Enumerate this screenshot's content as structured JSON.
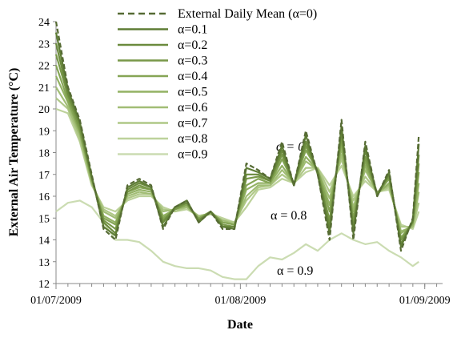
{
  "chart_data": {
    "type": "line",
    "y_label": "External Air Temperature (°C)",
    "x_label": "Date",
    "x": [
      "01/07/2009",
      "03/07/2009",
      "05/07/2009",
      "07/07/2009",
      "09/07/2009",
      "11/07/2009",
      "13/07/2009",
      "15/07/2009",
      "17/07/2009",
      "19/07/2009",
      "21/07/2009",
      "23/07/2009",
      "25/07/2009",
      "27/07/2009",
      "29/07/2009",
      "31/07/2009",
      "02/08/2009",
      "04/08/2009",
      "06/08/2009",
      "08/08/2009",
      "10/08/2009",
      "12/08/2009",
      "14/08/2009",
      "16/08/2009",
      "18/08/2009",
      "20/08/2009",
      "22/08/2009",
      "24/08/2009",
      "26/08/2009",
      "28/08/2009",
      "30/08/2009",
      "31/08/2009"
    ],
    "xlim": [
      "01/07/2009",
      "04/09/2009"
    ],
    "xticks": [
      "01/07/2009",
      "01/08/2009",
      "01/09/2009"
    ],
    "ylim": [
      12,
      24
    ],
    "yticks": [
      12,
      13,
      14,
      15,
      16,
      17,
      18,
      19,
      20,
      21,
      22,
      23,
      24
    ],
    "series": [
      {
        "name": "External Daily Mean (α=0)",
        "color": "#566b34",
        "dashed": true,
        "values": [
          24,
          21,
          19.5,
          17,
          14.5,
          14,
          16.5,
          16.8,
          16.5,
          14.5,
          15.5,
          15.8,
          14.8,
          15.3,
          14.5,
          14.5,
          17.5,
          17.2,
          16.8,
          18.5,
          16.5,
          19,
          17,
          14,
          19.5,
          14,
          18.5,
          16,
          17.2,
          13.5,
          15,
          18.8
        ]
      },
      {
        "name": "α=0.1",
        "color": "#5e7d35",
        "values": [
          23.5,
          20.9,
          19.4,
          16.9,
          14.6,
          14.2,
          16.4,
          16.7,
          16.4,
          14.6,
          15.5,
          15.8,
          14.8,
          15.3,
          14.6,
          14.5,
          17.3,
          17.1,
          16.8,
          18.3,
          16.5,
          18.8,
          17.0,
          14.3,
          19.2,
          14.3,
          18.3,
          16.0,
          17.1,
          13.7,
          14.9,
          18.4
        ]
      },
      {
        "name": "α=0.2",
        "color": "#6b8a3d",
        "values": [
          23,
          20.7,
          19.3,
          16.9,
          14.8,
          14.3,
          16.3,
          16.6,
          16.4,
          14.8,
          15.5,
          15.7,
          14.9,
          15.3,
          14.6,
          14.6,
          17.0,
          17.0,
          16.7,
          18.1,
          16.5,
          18.5,
          17.1,
          14.6,
          19.0,
          14.5,
          18.1,
          16.1,
          17.0,
          13.8,
          14.9,
          17.9
        ]
      },
      {
        "name": "α=0.3",
        "color": "#789848",
        "values": [
          22.5,
          20.6,
          19.1,
          16.8,
          14.9,
          14.5,
          16.2,
          16.5,
          16.3,
          14.9,
          15.4,
          15.7,
          14.9,
          15.3,
          14.7,
          14.6,
          16.8,
          16.9,
          16.7,
          17.9,
          16.5,
          18.3,
          17.1,
          14.9,
          18.7,
          14.8,
          17.8,
          16.1,
          16.9,
          14.0,
          14.8,
          17.5
        ]
      },
      {
        "name": "α=0.4",
        "color": "#85a555",
        "values": [
          22,
          20.4,
          19.0,
          16.8,
          15.0,
          14.7,
          16.2,
          16.4,
          16.3,
          15.0,
          15.4,
          15.6,
          15.0,
          15.3,
          14.8,
          14.7,
          16.5,
          16.8,
          16.6,
          17.7,
          16.6,
          18.1,
          17.2,
          15.3,
          18.5,
          15.0,
          17.6,
          16.1,
          16.8,
          14.1,
          14.8,
          17.1
        ]
      },
      {
        "name": "α=0.5",
        "color": "#93b264",
        "values": [
          21.5,
          20.3,
          18.9,
          16.7,
          15.1,
          14.8,
          16.1,
          16.3,
          16.2,
          15.1,
          15.4,
          15.6,
          15.0,
          15.2,
          14.8,
          14.7,
          16.3,
          16.6,
          16.6,
          17.4,
          16.6,
          17.8,
          17.2,
          15.6,
          18.2,
          15.3,
          17.4,
          16.1,
          16.6,
          14.3,
          14.7,
          16.6
        ]
      },
      {
        "name": "α=0.6",
        "color": "#a1bd75",
        "values": [
          21,
          20.1,
          18.8,
          16.6,
          15.3,
          15.0,
          16.0,
          16.2,
          16.1,
          15.3,
          15.4,
          15.5,
          15.0,
          15.2,
          14.9,
          14.7,
          16.0,
          16.5,
          16.5,
          17.2,
          16.6,
          17.6,
          17.2,
          15.9,
          17.9,
          15.5,
          17.2,
          16.2,
          16.5,
          14.4,
          14.6,
          16.2
        ]
      },
      {
        "name": "α=0.7",
        "color": "#afc887",
        "values": [
          20.5,
          20.0,
          18.6,
          16.6,
          15.4,
          15.1,
          15.9,
          16.1,
          16.1,
          15.4,
          15.3,
          15.5,
          15.1,
          15.2,
          14.9,
          14.8,
          15.8,
          16.4,
          16.5,
          17.0,
          16.6,
          17.3,
          17.3,
          16.2,
          17.7,
          15.8,
          16.9,
          16.2,
          16.4,
          14.6,
          14.6,
          15.7
        ]
      },
      {
        "name": "α=0.8",
        "color": "#bdd29b",
        "values": [
          20,
          19.8,
          18.5,
          16.5,
          15.5,
          15.3,
          15.8,
          16,
          16,
          15.5,
          15.3,
          15.4,
          15.1,
          15.2,
          15,
          14.8,
          15.5,
          16.3,
          16.4,
          16.8,
          16.6,
          17.1,
          17.3,
          16.5,
          17.4,
          16,
          16.7,
          16.2,
          16.3,
          14.7,
          14.5,
          15.3
        ]
      },
      {
        "name": "α=0.9",
        "color": "#cbdcb2",
        "values": [
          15.3,
          15.7,
          15.8,
          15.5,
          14.8,
          14.0,
          14.0,
          13.9,
          13.5,
          13.0,
          12.8,
          12.7,
          12.7,
          12.6,
          12.3,
          12.2,
          12.2,
          12.8,
          13.2,
          13.1,
          13.4,
          13.8,
          13.5,
          14.0,
          14.3,
          14.0,
          13.8,
          13.9,
          13.5,
          13.2,
          12.8,
          13.0
        ]
      }
    ],
    "annotations": [
      "α = 0",
      "α = 0.8",
      "α = 0.9"
    ]
  }
}
